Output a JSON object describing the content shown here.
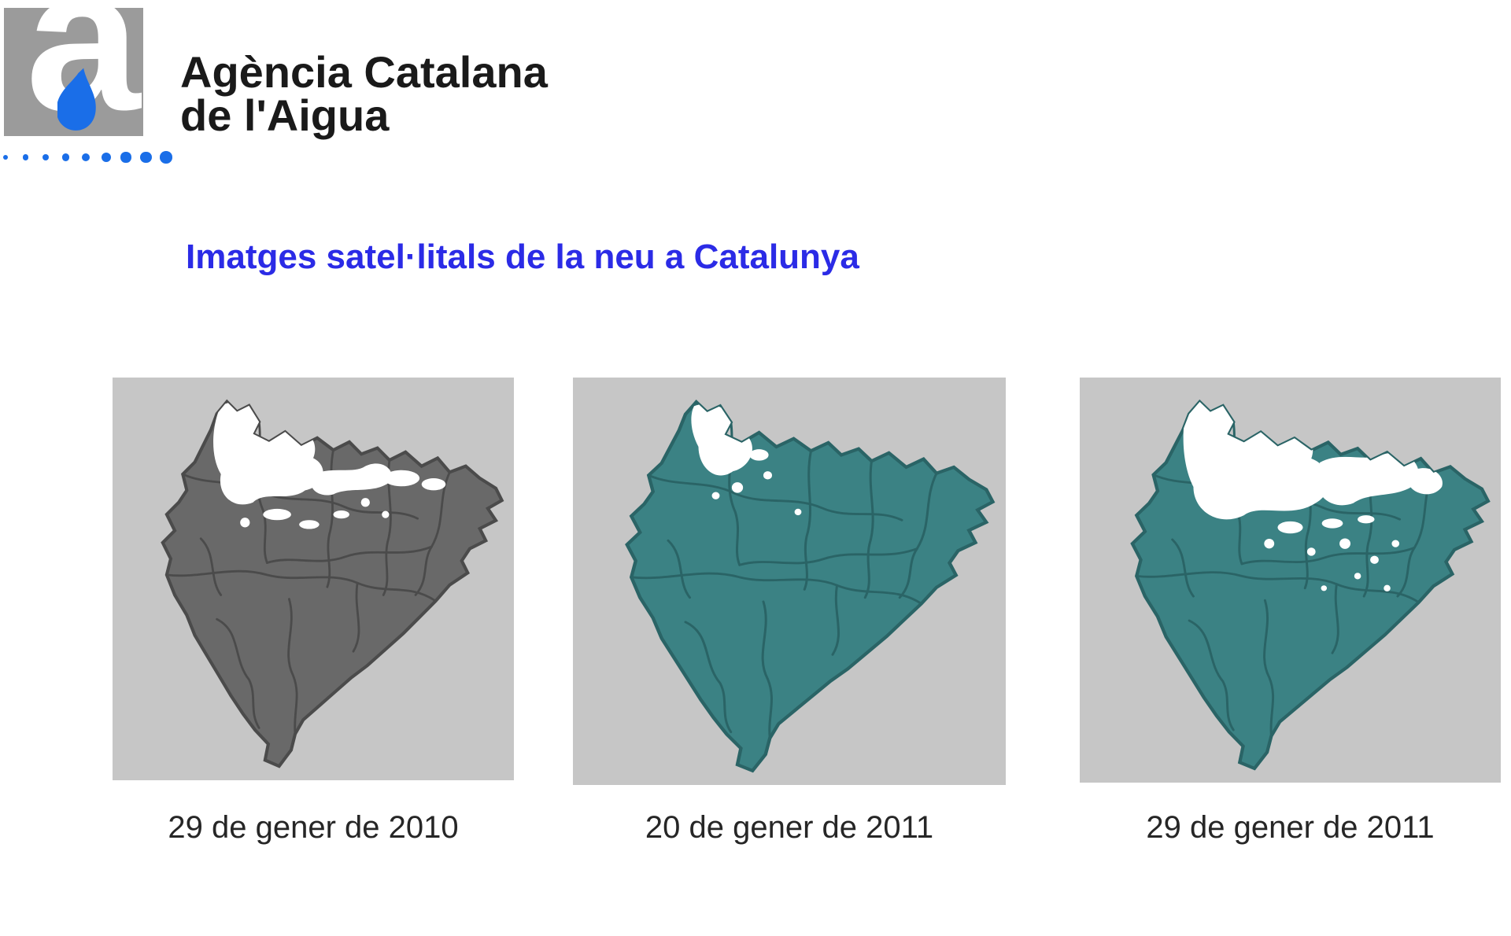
{
  "header": {
    "org_name_line1": "Agència Catalana",
    "org_name_line2": "de l'Aigua"
  },
  "logo": {
    "letter": "a",
    "square_color": "#9b9b9b",
    "drop_color": "#1a6ee8",
    "dots_color": "#1a6ee8",
    "dot_count": 9
  },
  "title": {
    "text": "Imatges satel·litals de la neu a Catalunya",
    "color": "#2b2be6"
  },
  "panels": [
    {
      "caption": "29 de gener de 2010",
      "bg_color": "#c6c6c6",
      "land_color": "#696969",
      "border_color": "#4b4b4b",
      "snow_color": "#ffffff",
      "text_color": "#262626"
    },
    {
      "caption": "20 de gener de 2011",
      "bg_color": "#c6c6c6",
      "land_color": "#3b8284",
      "border_color": "#2a6466",
      "snow_color": "#ffffff",
      "text_color": "#262626"
    },
    {
      "caption": "29 de gener de 2011",
      "bg_color": "#c6c6c6",
      "land_color": "#3b8284",
      "border_color": "#2a6466",
      "snow_color": "#ffffff",
      "text_color": "#262626"
    }
  ]
}
